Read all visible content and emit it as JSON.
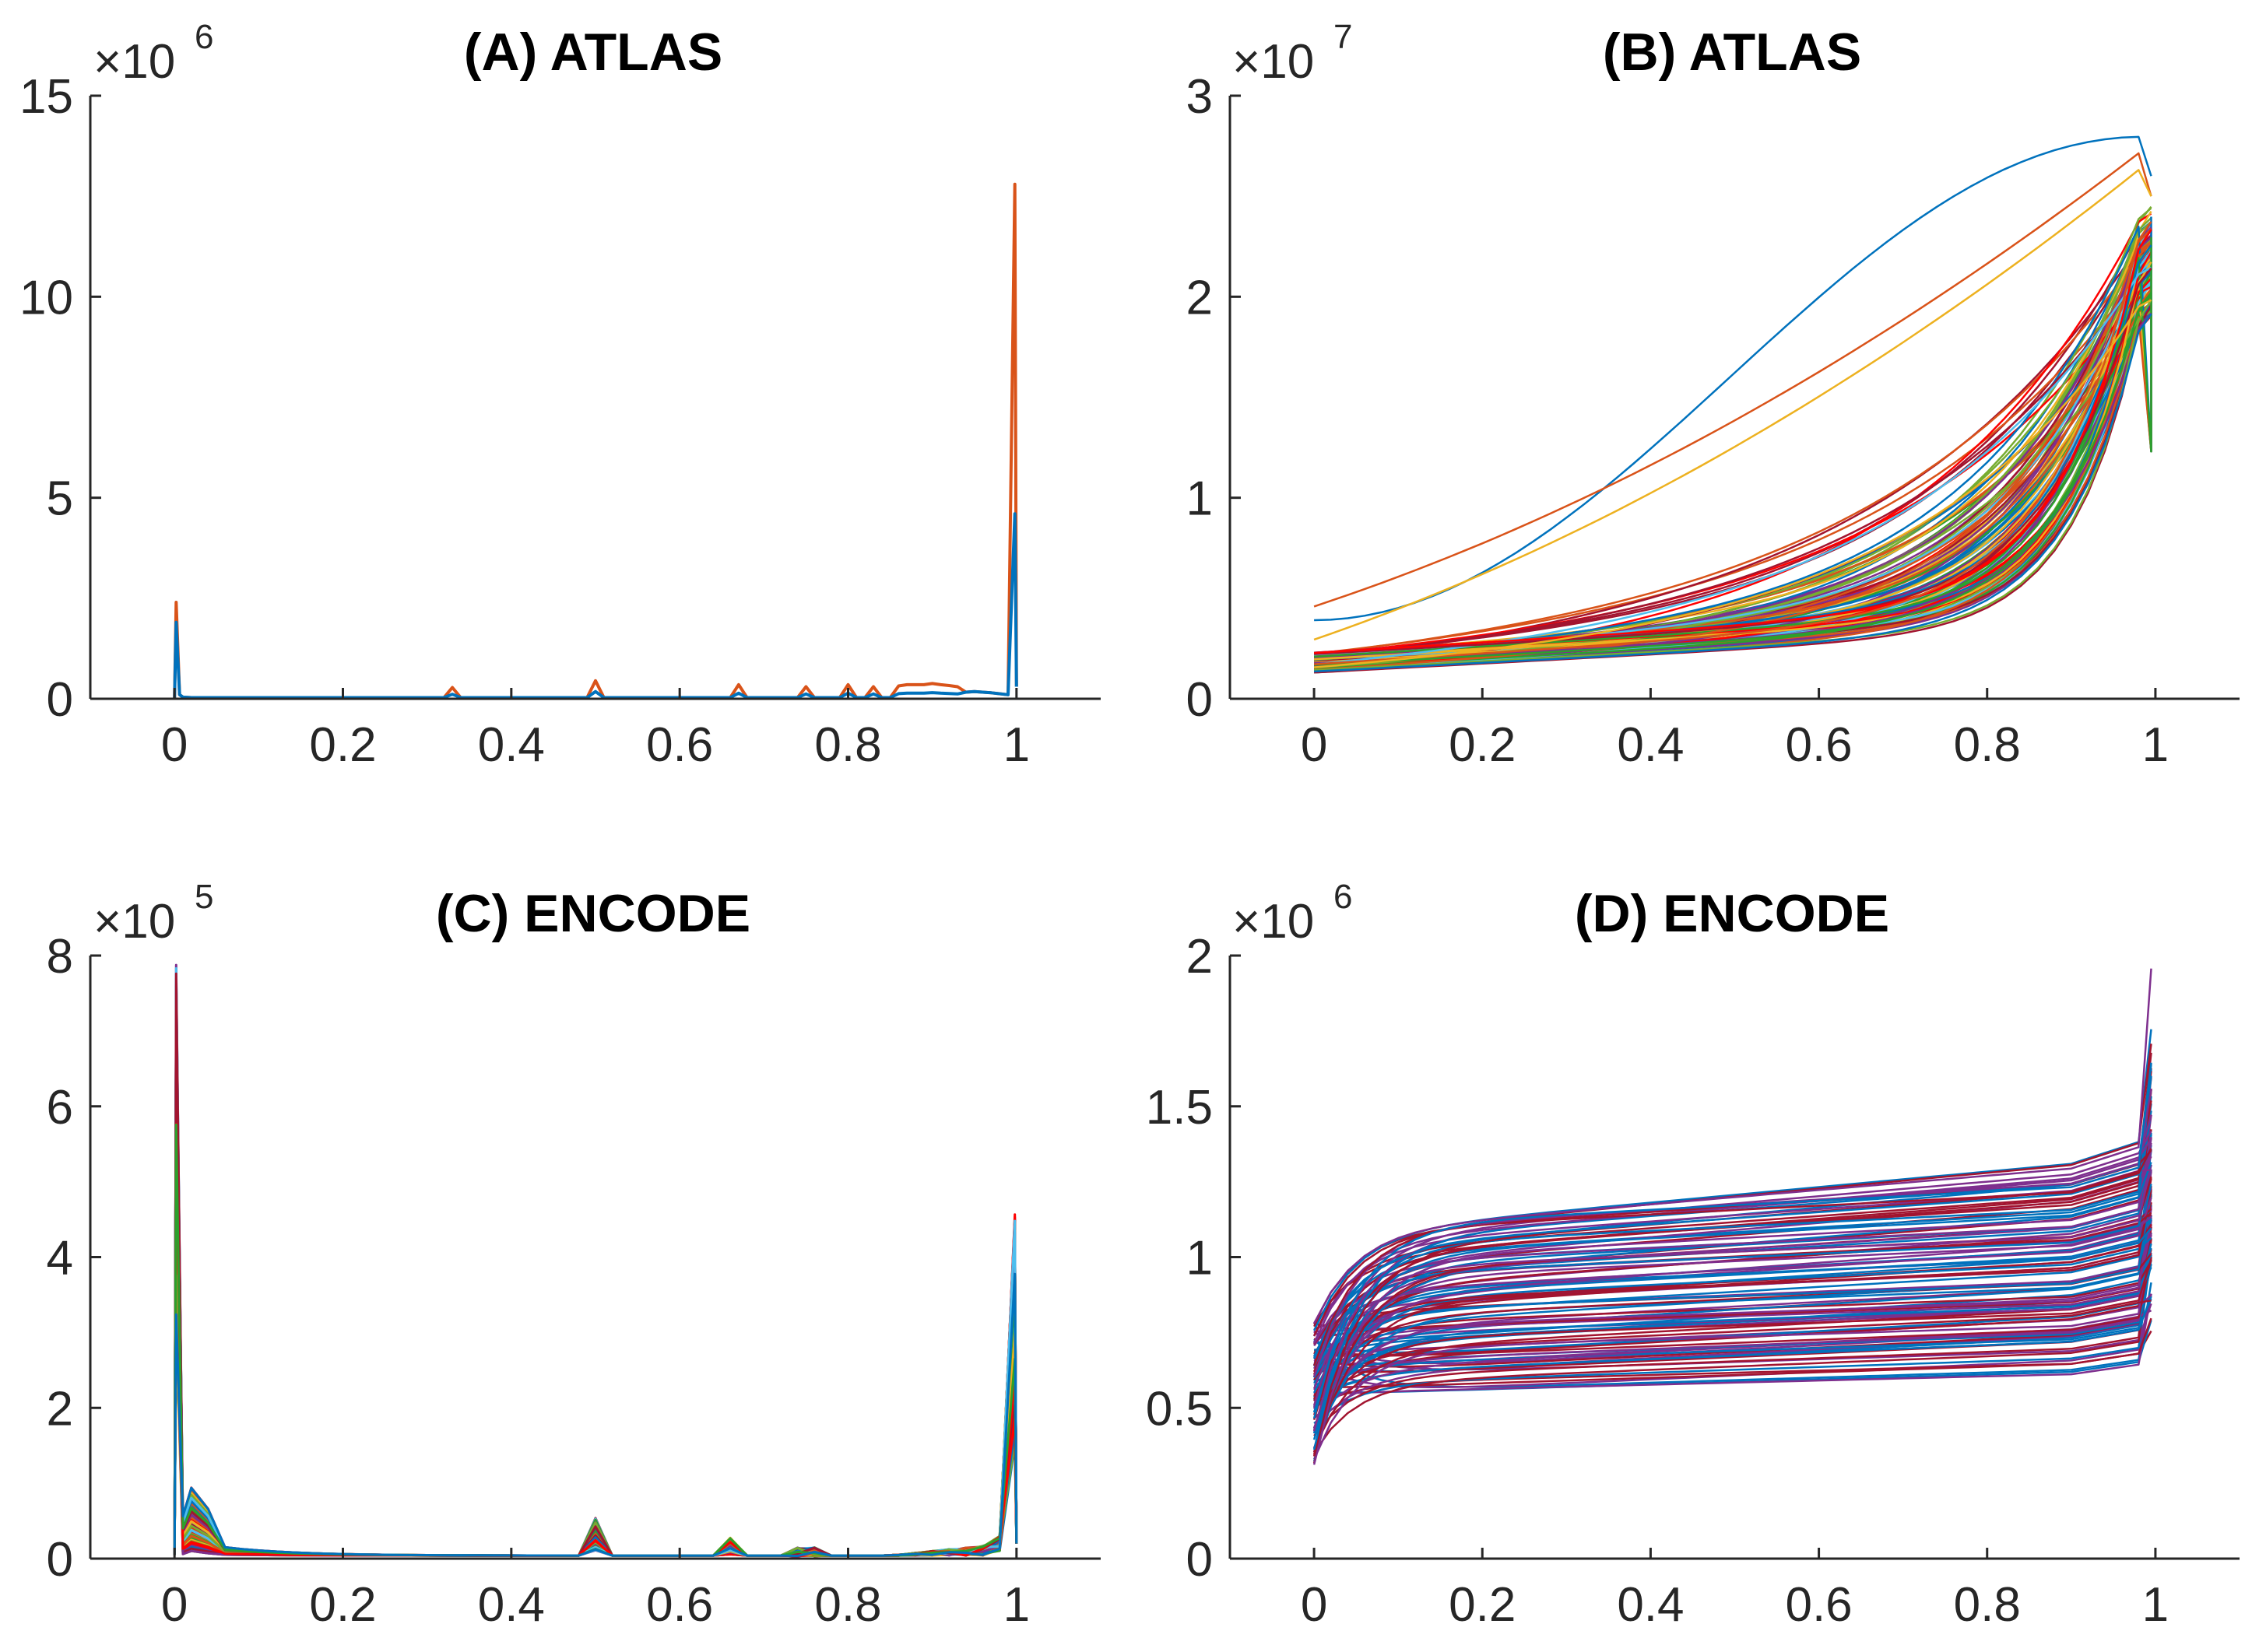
{
  "figure": "Four-panel comparison of ATLAS and ENCODE sample distributions",
  "chart_data": [
    {
      "id": "A",
      "type": "line",
      "title": "(A) ATLAS",
      "xlabel": "",
      "ylabel": "",
      "y_multiplier": {
        "base": "×10",
        "exponent": "6"
      },
      "xlim": [
        -0.1,
        1.1
      ],
      "ylim": [
        0,
        15
      ],
      "xticks": [
        0,
        0.2,
        0.4,
        0.6,
        0.8,
        1
      ],
      "xtick_labels": [
        "0",
        "0.2",
        "0.4",
        "0.6",
        "0.8",
        "1"
      ],
      "yticks": [
        0,
        5,
        10,
        15
      ],
      "ytick_labels": [
        "0",
        "5",
        "10",
        "15"
      ],
      "grid": false,
      "description_values": {
        "peak_at_x0": 2.4,
        "peak_at_x1": 12.8,
        "baseline": 0.05,
        "small_spikes": [
          [
            0.333,
            0.28
          ],
          [
            0.5,
            0.45
          ],
          [
            0.667,
            0.35
          ],
          [
            0.75,
            0.3
          ],
          [
            0.8,
            0.35
          ],
          [
            0.833,
            0.3
          ],
          [
            0.857,
            0.32
          ],
          [
            0.875,
            0.35
          ],
          [
            0.889,
            0.35
          ],
          [
            0.9,
            0.38
          ],
          [
            0.91,
            0.35
          ],
          [
            0.923,
            0.33
          ],
          [
            0.93,
            0.3
          ]
        ]
      },
      "series": [
        {
          "name": "series-orange",
          "color": "#D95319",
          "peak0": 2.4,
          "peak1": 12.8
        },
        {
          "name": "series-blue",
          "color": "#0072BD",
          "peak0": 1.9,
          "peak1": 4.6
        }
      ]
    },
    {
      "id": "B",
      "type": "line",
      "title": "(B) ATLAS",
      "xlabel": "",
      "ylabel": "",
      "y_multiplier": {
        "base": "×10",
        "exponent": "7"
      },
      "xlim": [
        -0.1,
        1.1
      ],
      "ylim": [
        0,
        3
      ],
      "xticks": [
        0,
        0.2,
        0.4,
        0.6,
        0.8,
        1
      ],
      "xtick_labels": [
        "0",
        "0.2",
        "0.4",
        "0.6",
        "0.8",
        "1"
      ],
      "yticks": [
        0,
        1,
        2,
        3
      ],
      "ytick_labels": [
        "0",
        "1",
        "2",
        "3"
      ],
      "grid": false,
      "series_count": 120,
      "description_values": {
        "start_range": [
          0.13,
          0.23
        ],
        "end_range": [
          1.23,
          2.6
        ],
        "highest_curve_end": 2.6
      }
    },
    {
      "id": "C",
      "type": "line",
      "title": "(C) ENCODE",
      "xlabel": "",
      "ylabel": "",
      "y_multiplier": {
        "base": "×10",
        "exponent": "5"
      },
      "xlim": [
        -0.1,
        1.1
      ],
      "ylim": [
        0,
        8
      ],
      "xticks": [
        0,
        0.2,
        0.4,
        0.6,
        0.8,
        1
      ],
      "xtick_labels": [
        "0",
        "0.2",
        "0.4",
        "0.6",
        "0.8",
        "1"
      ],
      "yticks": [
        0,
        2,
        4,
        6,
        8
      ],
      "ytick_labels": [
        "0",
        "2",
        "4",
        "6",
        "8"
      ],
      "grid": false,
      "series_count": 100,
      "description_values": {
        "peak_at_x0": 7.9,
        "peak_at_x1": 4.6,
        "secondary_bump_x": 0.02,
        "secondary_bump_max": 0.95,
        "spikes": [
          [
            0.5,
            0.55
          ],
          [
            0.667,
            0.28
          ],
          [
            0.75,
            0.15
          ]
        ]
      }
    },
    {
      "id": "D",
      "type": "line",
      "title": "(D) ENCODE",
      "xlabel": "",
      "ylabel": "",
      "y_multiplier": {
        "base": "×10",
        "exponent": "6"
      },
      "xlim": [
        -0.1,
        1.1
      ],
      "ylim": [
        0,
        2
      ],
      "xticks": [
        0,
        0.2,
        0.4,
        0.6,
        0.8,
        1
      ],
      "xtick_labels": [
        "0",
        "0.2",
        "0.4",
        "0.6",
        "0.8",
        "1"
      ],
      "yticks": [
        0,
        0.5,
        1,
        1.5,
        2
      ],
      "ytick_labels": [
        "0",
        "0.5",
        "1",
        "1.5",
        "2"
      ],
      "grid": false,
      "series_count": 110,
      "description_values": {
        "start_range": [
          0.31,
          0.78
        ],
        "end_range_before_spike": [
          0.75,
          1.52
        ],
        "max_spike_at_x1": 1.99
      }
    }
  ],
  "palette": [
    "#0072BD",
    "#D95319",
    "#EDB120",
    "#7E2F8E",
    "#77AC30",
    "#4DBEEE",
    "#A2142F",
    "#FF0000",
    "#2CA02C"
  ]
}
